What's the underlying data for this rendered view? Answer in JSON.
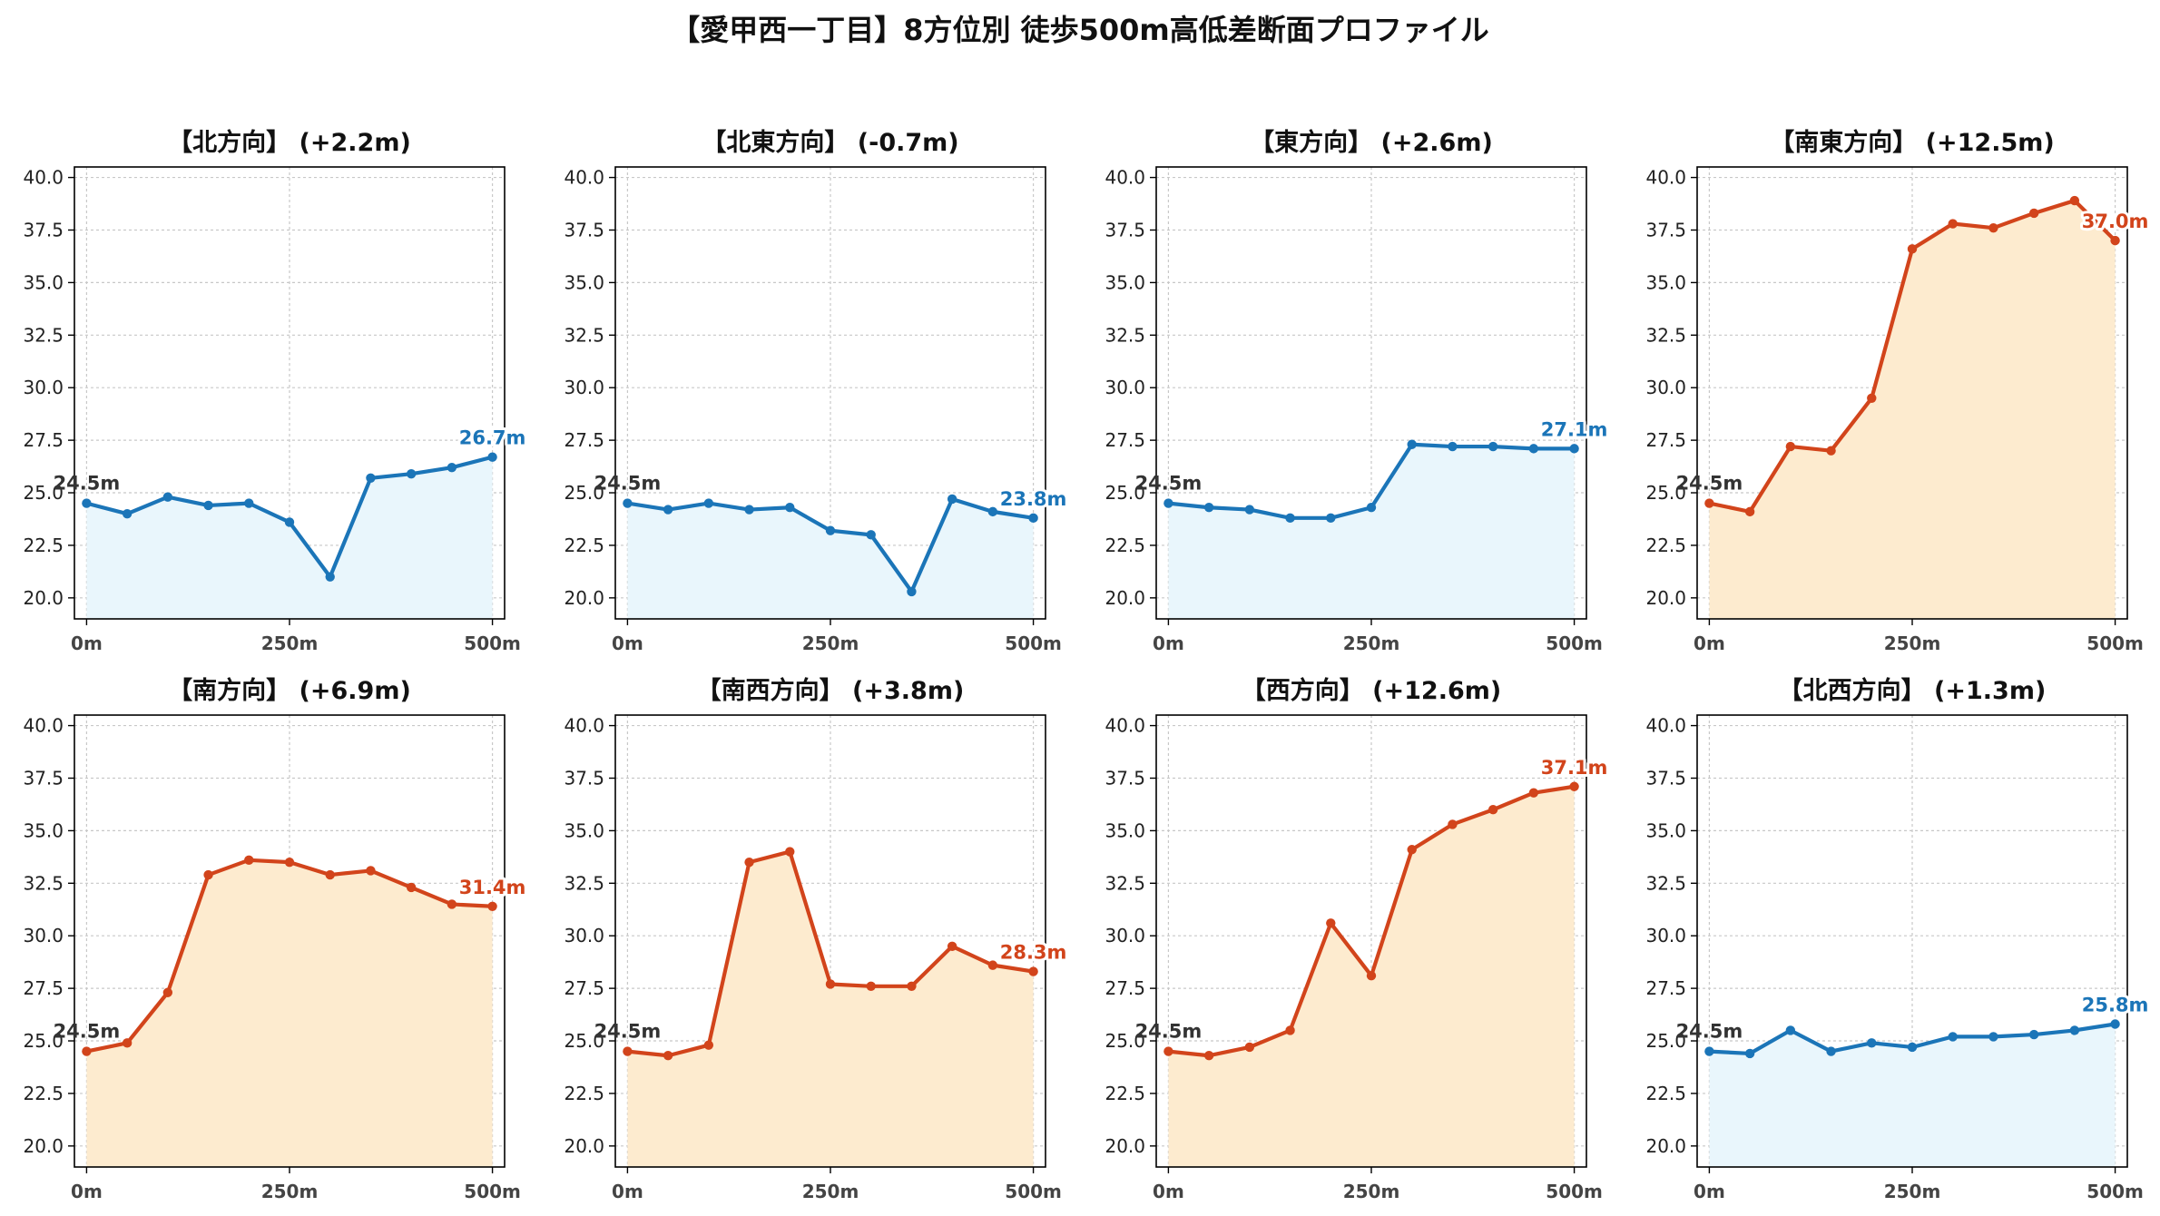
{
  "figure": {
    "title": "【愛甲西一丁目】8方位別 徒歩500m高低差断面プロファイル",
    "colors": {
      "up": "#d2441b",
      "down": "#1b75b8",
      "up_fill": "#fdebcf",
      "down_fill": "#e9f6fc"
    }
  },
  "chart_data": [
    {
      "type": "area",
      "title": "【北方向】 (+2.2m)",
      "x": [
        0,
        50,
        100,
        150,
        200,
        250,
        300,
        350,
        400,
        450,
        500
      ],
      "values": [
        24.5,
        24.0,
        24.8,
        24.4,
        24.5,
        23.6,
        21.0,
        25.7,
        25.9,
        26.2,
        26.7
      ],
      "ylim": [
        19.0,
        40.5
      ],
      "xticks": [
        "0m",
        "250m",
        "500m"
      ],
      "yticks": [
        "20.0",
        "22.5",
        "25.0",
        "27.5",
        "30.0",
        "32.5",
        "35.0",
        "37.5",
        "40.0"
      ],
      "start_label": "24.5m",
      "end_label": "26.7m",
      "trend": "down",
      "grid": true
    },
    {
      "type": "area",
      "title": "【北東方向】 (-0.7m)",
      "x": [
        0,
        50,
        100,
        150,
        200,
        250,
        300,
        350,
        400,
        450,
        500
      ],
      "values": [
        24.5,
        24.2,
        24.5,
        24.2,
        24.3,
        23.2,
        23.0,
        20.3,
        24.7,
        24.1,
        23.8
      ],
      "ylim": [
        19.0,
        40.5
      ],
      "xticks": [
        "0m",
        "250m",
        "500m"
      ],
      "yticks": [
        "20.0",
        "22.5",
        "25.0",
        "27.5",
        "30.0",
        "32.5",
        "35.0",
        "37.5",
        "40.0"
      ],
      "start_label": "24.5m",
      "end_label": "23.8m",
      "trend": "down",
      "grid": true
    },
    {
      "type": "area",
      "title": "【東方向】 (+2.6m)",
      "x": [
        0,
        50,
        100,
        150,
        200,
        250,
        300,
        350,
        400,
        450,
        500
      ],
      "values": [
        24.5,
        24.3,
        24.2,
        23.8,
        23.8,
        24.3,
        27.3,
        27.2,
        27.2,
        27.1,
        27.1
      ],
      "ylim": [
        19.0,
        40.5
      ],
      "xticks": [
        "0m",
        "250m",
        "500m"
      ],
      "yticks": [
        "20.0",
        "22.5",
        "25.0",
        "27.5",
        "30.0",
        "32.5",
        "35.0",
        "37.5",
        "40.0"
      ],
      "start_label": "24.5m",
      "end_label": "27.1m",
      "trend": "down",
      "grid": true
    },
    {
      "type": "area",
      "title": "【南東方向】 (+12.5m)",
      "x": [
        0,
        50,
        100,
        150,
        200,
        250,
        300,
        350,
        400,
        450,
        500
      ],
      "values": [
        24.5,
        24.1,
        27.2,
        27.0,
        29.5,
        36.6,
        37.8,
        37.6,
        38.3,
        38.9,
        37.0
      ],
      "ylim": [
        19.0,
        40.5
      ],
      "xticks": [
        "0m",
        "250m",
        "500m"
      ],
      "yticks": [
        "20.0",
        "22.5",
        "25.0",
        "27.5",
        "30.0",
        "32.5",
        "35.0",
        "37.5",
        "40.0"
      ],
      "start_label": "24.5m",
      "end_label": "37.0m",
      "trend": "up",
      "grid": true
    },
    {
      "type": "area",
      "title": "【南方向】 (+6.9m)",
      "x": [
        0,
        50,
        100,
        150,
        200,
        250,
        300,
        350,
        400,
        450,
        500
      ],
      "values": [
        24.5,
        24.9,
        27.3,
        32.9,
        33.6,
        33.5,
        32.9,
        33.1,
        32.3,
        31.5,
        31.4
      ],
      "ylim": [
        19.0,
        40.5
      ],
      "xticks": [
        "0m",
        "250m",
        "500m"
      ],
      "yticks": [
        "20.0",
        "22.5",
        "25.0",
        "27.5",
        "30.0",
        "32.5",
        "35.0",
        "37.5",
        "40.0"
      ],
      "start_label": "24.5m",
      "end_label": "31.4m",
      "trend": "up",
      "grid": true
    },
    {
      "type": "area",
      "title": "【南西方向】 (+3.8m)",
      "x": [
        0,
        50,
        100,
        150,
        200,
        250,
        300,
        350,
        400,
        450,
        500
      ],
      "values": [
        24.5,
        24.3,
        24.8,
        33.5,
        34.0,
        27.7,
        27.6,
        27.6,
        29.5,
        28.6,
        28.3
      ],
      "ylim": [
        19.0,
        40.5
      ],
      "xticks": [
        "0m",
        "250m",
        "500m"
      ],
      "yticks": [
        "20.0",
        "22.5",
        "25.0",
        "27.5",
        "30.0",
        "32.5",
        "35.0",
        "37.5",
        "40.0"
      ],
      "start_label": "24.5m",
      "end_label": "28.3m",
      "trend": "up",
      "grid": true
    },
    {
      "type": "area",
      "title": "【西方向】 (+12.6m)",
      "x": [
        0,
        50,
        100,
        150,
        200,
        250,
        300,
        350,
        400,
        450,
        500
      ],
      "values": [
        24.5,
        24.3,
        24.7,
        25.5,
        30.6,
        28.1,
        34.1,
        35.3,
        36.0,
        36.8,
        37.1
      ],
      "ylim": [
        19.0,
        40.5
      ],
      "xticks": [
        "0m",
        "250m",
        "500m"
      ],
      "yticks": [
        "20.0",
        "22.5",
        "25.0",
        "27.5",
        "30.0",
        "32.5",
        "35.0",
        "37.5",
        "40.0"
      ],
      "start_label": "24.5m",
      "end_label": "37.1m",
      "trend": "up",
      "grid": true
    },
    {
      "type": "area",
      "title": "【北西方向】 (+1.3m)",
      "x": [
        0,
        50,
        100,
        150,
        200,
        250,
        300,
        350,
        400,
        450,
        500
      ],
      "values": [
        24.5,
        24.4,
        25.5,
        24.5,
        24.9,
        24.7,
        25.2,
        25.2,
        25.3,
        25.5,
        25.8
      ],
      "ylim": [
        19.0,
        40.5
      ],
      "xticks": [
        "0m",
        "250m",
        "500m"
      ],
      "yticks": [
        "20.0",
        "22.5",
        "25.0",
        "27.5",
        "30.0",
        "32.5",
        "35.0",
        "37.5",
        "40.0"
      ],
      "start_label": "24.5m",
      "end_label": "25.8m",
      "trend": "down",
      "grid": true
    }
  ]
}
